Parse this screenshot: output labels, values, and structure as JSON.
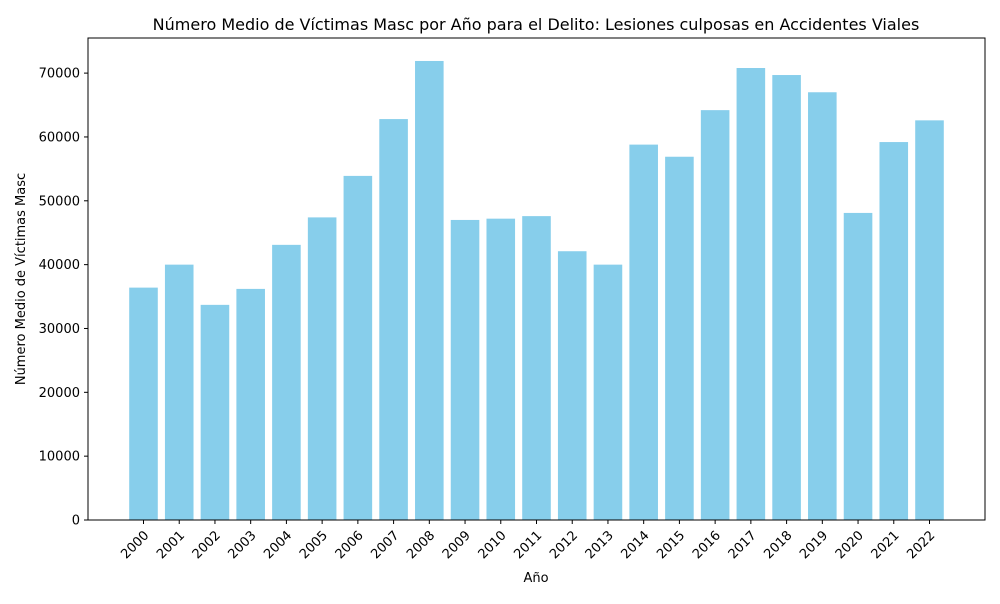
{
  "chart_data": {
    "type": "bar",
    "title": "Número Medio de Víctimas Masc por Año para el Delito: Lesiones culposas en Accidentes Viales",
    "xlabel": "Año",
    "ylabel": "Número Medio de Víctimas Masc",
    "categories": [
      "2000",
      "2001",
      "2002",
      "2003",
      "2004",
      "2005",
      "2006",
      "2007",
      "2008",
      "2009",
      "2010",
      "2011",
      "2012",
      "2013",
      "2014",
      "2015",
      "2016",
      "2017",
      "2018",
      "2019",
      "2020",
      "2021",
      "2022"
    ],
    "values": [
      36400,
      40000,
      33700,
      36200,
      43100,
      47400,
      53900,
      62800,
      71900,
      47000,
      47200,
      47600,
      42100,
      40000,
      58800,
      56900,
      64200,
      70800,
      69700,
      67000,
      48100,
      59200,
      62600
    ],
    "ylim": [
      0,
      75500
    ],
    "yticks": [
      0,
      10000,
      20000,
      30000,
      40000,
      50000,
      60000,
      70000
    ],
    "grid": false,
    "legend": "none",
    "bar_color": "#87ceeb"
  }
}
